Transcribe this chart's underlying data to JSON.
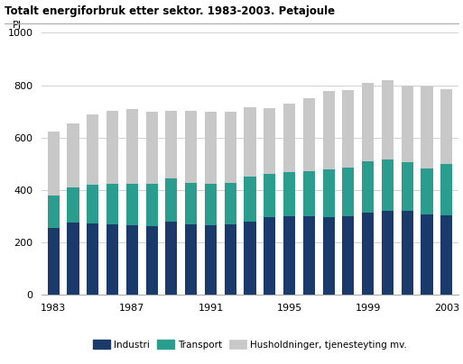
{
  "title": "Totalt energiforbruk etter sektor. 1983-2003. Petajoule",
  "ylabel": "PJ",
  "years": [
    1983,
    1984,
    1985,
    1986,
    1987,
    1988,
    1989,
    1990,
    1991,
    1992,
    1993,
    1994,
    1995,
    1996,
    1997,
    1998,
    1999,
    2000,
    2001,
    2002,
    2003
  ],
  "industri": [
    255,
    275,
    272,
    268,
    265,
    262,
    278,
    268,
    265,
    270,
    280,
    295,
    300,
    300,
    295,
    300,
    315,
    320,
    320,
    308,
    303
  ],
  "transport": [
    125,
    135,
    148,
    155,
    160,
    160,
    165,
    158,
    160,
    158,
    170,
    168,
    168,
    172,
    182,
    185,
    195,
    198,
    185,
    175,
    195
  ],
  "husholdninger": [
    243,
    245,
    268,
    278,
    285,
    278,
    258,
    275,
    275,
    272,
    265,
    248,
    262,
    278,
    300,
    297,
    298,
    300,
    292,
    312,
    285
  ],
  "color_industri": "#1a3a6b",
  "color_transport": "#2a9d8f",
  "color_husholdninger": "#c8c8c8",
  "legend_industri": "Industri",
  "legend_transport": "Transport",
  "legend_husholdninger": "Husholdninger, tjenesteyting mv.",
  "ylim": [
    0,
    1000
  ],
  "yticks": [
    0,
    200,
    400,
    600,
    800,
    1000
  ],
  "xticks": [
    1983,
    1987,
    1991,
    1995,
    1999,
    2003
  ],
  "background_color": "#ffffff",
  "grid_color": "#d0d0d0",
  "bar_width": 0.6
}
